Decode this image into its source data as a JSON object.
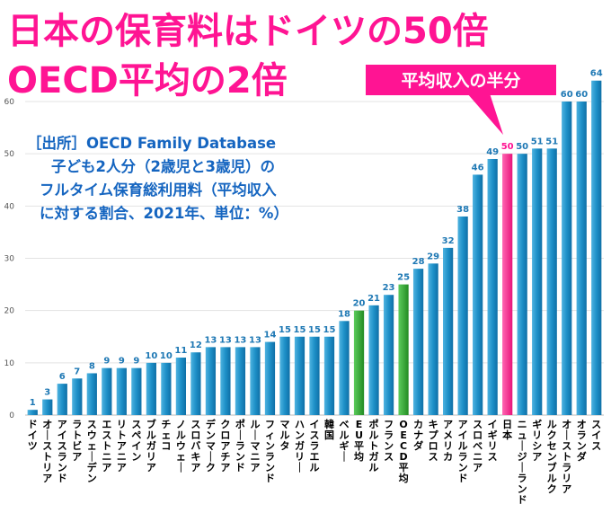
{
  "chart_data": {
    "type": "bar",
    "title": "日本の保育料はドイツの50倍",
    "subtitle": "OECD平均の2倍",
    "callout": "平均収入の半分",
    "source_note": [
      "［出所］OECD Family Database",
      "子ども2人分（2歳児と3歳児）の",
      "フルタイム保育総利用料（平均収入",
      "に対する割合、2021年、単位：%）"
    ],
    "ylim": [
      0,
      65
    ],
    "yticks": [
      0,
      10,
      20,
      30,
      40,
      50,
      60
    ],
    "grid": true,
    "categories": [
      "ドイツ",
      "オーストリア",
      "アイスランド",
      "ラトビア",
      "スウェーデン",
      "エストニア",
      "リトアニア",
      "スペイン",
      "ブルガリア",
      "チェコ",
      "ノルウェー",
      "スロバキア",
      "デンマーク",
      "クロアチア",
      "ポーランド",
      "ルーマニア",
      "フィンランド",
      "マルタ",
      "ハンガリー",
      "イスラエル",
      "韓国",
      "ベルギー",
      "EU平均",
      "ポルトガル",
      "フランス",
      "OECD平均",
      "カナダ",
      "キプロス",
      "アメリカ",
      "アイルランド",
      "スロベニア",
      "イギリス",
      "日本",
      "ニュージーランド",
      "ギリシア",
      "ルクセンブルク",
      "オーストラリア",
      "オランダ",
      "スイス"
    ],
    "values": [
      1,
      3,
      6,
      7,
      8,
      9,
      9,
      9,
      10,
      10,
      11,
      12,
      13,
      13,
      13,
      13,
      14,
      15,
      15,
      15,
      15,
      18,
      20,
      21,
      23,
      25,
      28,
      29,
      32,
      38,
      46,
      49,
      50,
      50,
      51,
      51,
      60,
      60,
      64
    ],
    "highlight": {
      "日本": "#ff3399",
      "EU平均": "#33aa33",
      "OECD平均": "#33aa33"
    },
    "colors": {
      "default_bar": "#1e90c8",
      "title": "#ff1493",
      "note": "#1565c0",
      "callout_bg": "#ff1493"
    }
  }
}
